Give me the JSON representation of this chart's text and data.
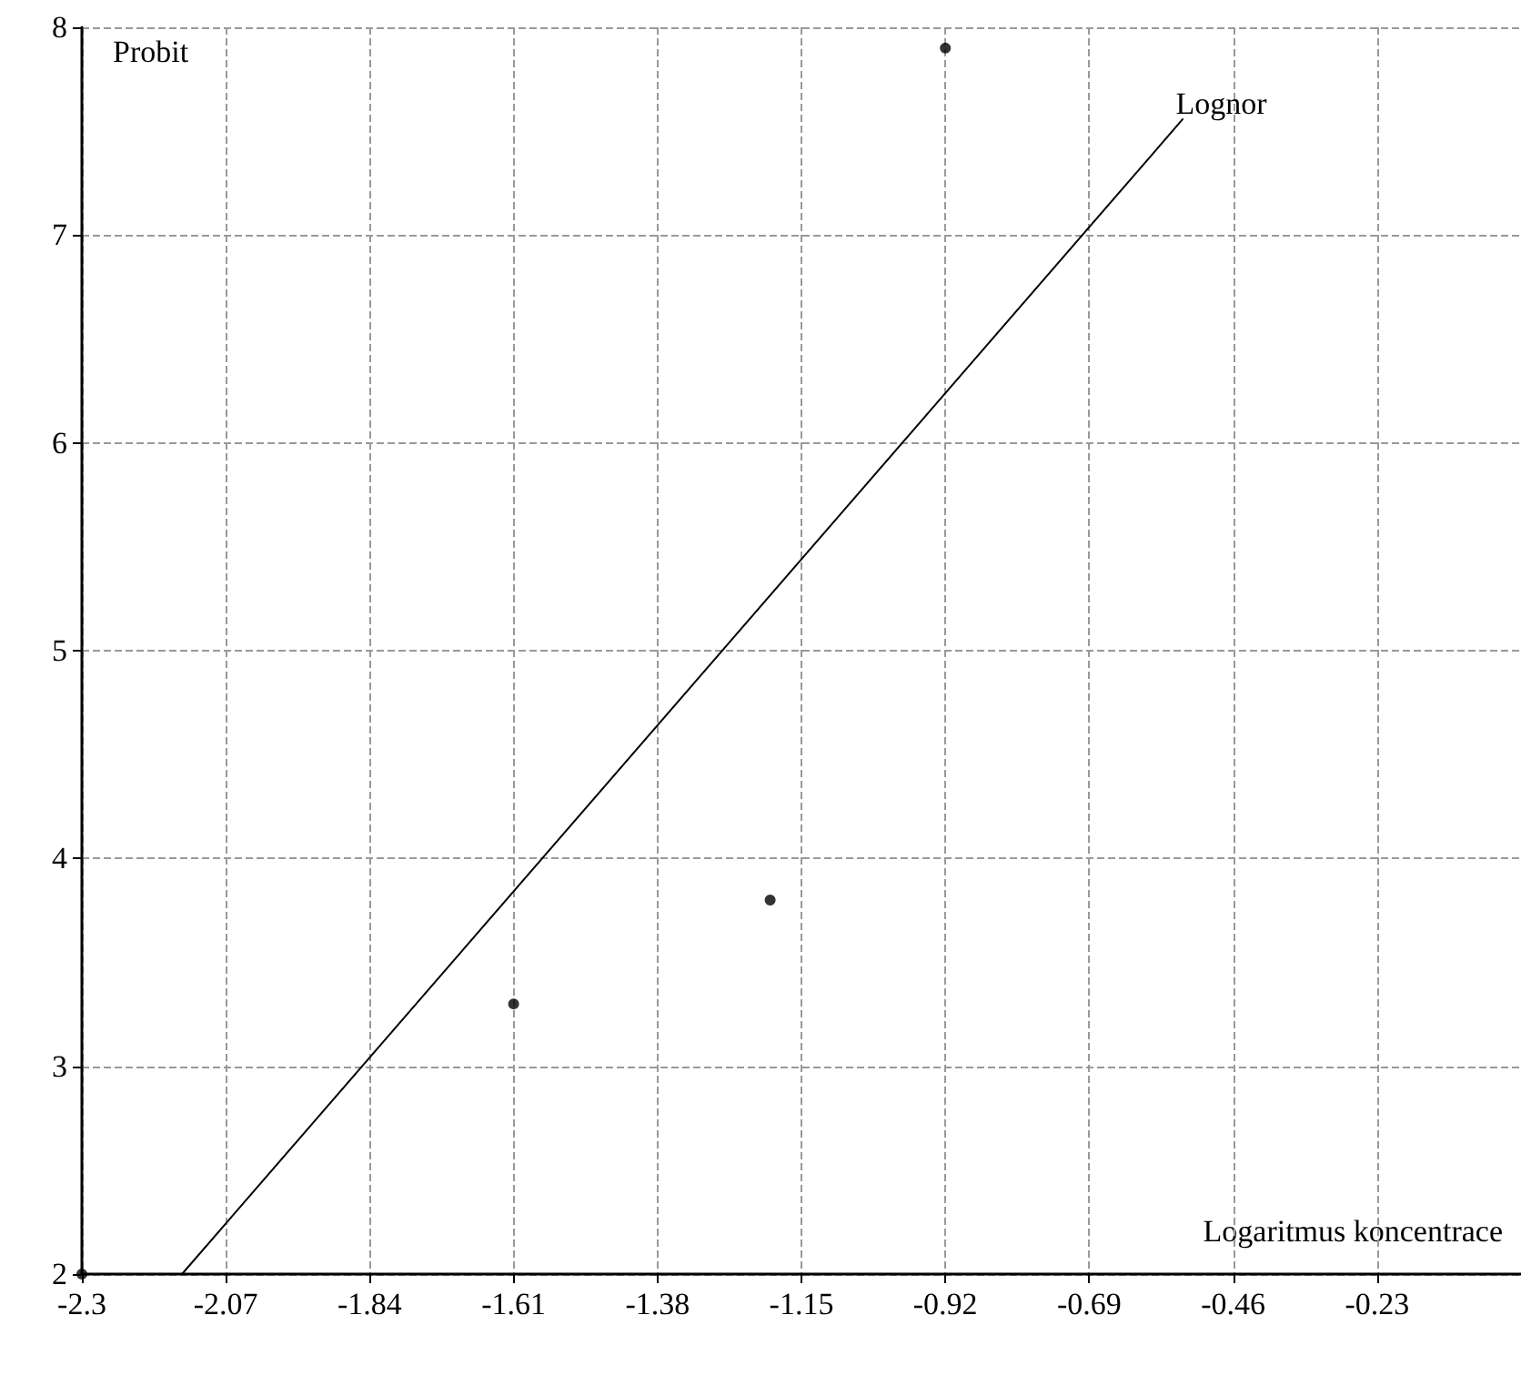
{
  "chart_data": {
    "type": "scatter",
    "xlabel": "Logaritmus koncentrace",
    "ylabel": "Probit",
    "xlim": [
      -2.3,
      0
    ],
    "xticks": [
      -2.3,
      -2.07,
      -1.84,
      -1.61,
      -1.38,
      -1.15,
      -0.92,
      -0.69,
      -0.46,
      -0.23
    ],
    "ylim": [
      2,
      8
    ],
    "yticks": [
      2,
      3,
      4,
      5,
      6,
      7,
      8
    ],
    "grid": true,
    "legend": false,
    "series": [
      {
        "marker": "circle",
        "color": "#000000",
        "x": [
          -2.3,
          -1.61,
          -1.2,
          -0.92
        ],
        "values": [
          2,
          3.3,
          3.8,
          7.9
        ]
      },
      {
        "type": "line",
        "marker": "none",
        "name": "Lognor",
        "color": "#000000",
        "x": [
          -2.14,
          -0.54
        ],
        "values": [
          2,
          7.56
        ]
      }
    ]
  }
}
